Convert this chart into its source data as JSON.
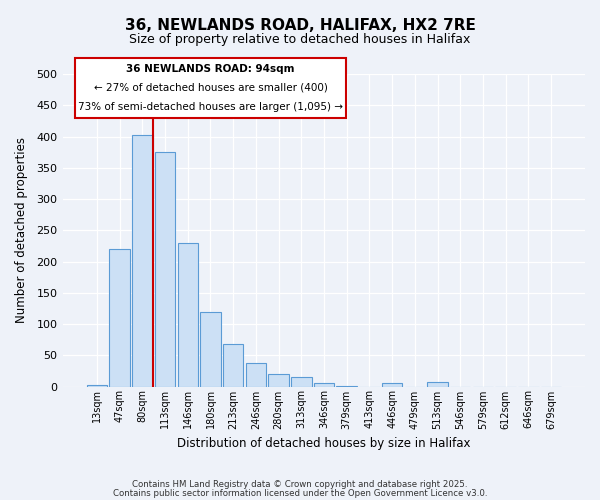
{
  "title": "36, NEWLANDS ROAD, HALIFAX, HX2 7RE",
  "subtitle": "Size of property relative to detached houses in Halifax",
  "xlabel": "Distribution of detached houses by size in Halifax",
  "ylabel": "Number of detached properties",
  "bar_labels": [
    "13sqm",
    "47sqm",
    "80sqm",
    "113sqm",
    "146sqm",
    "180sqm",
    "213sqm",
    "246sqm",
    "280sqm",
    "313sqm",
    "346sqm",
    "379sqm",
    "413sqm",
    "446sqm",
    "479sqm",
    "513sqm",
    "546sqm",
    "579sqm",
    "612sqm",
    "646sqm",
    "679sqm"
  ],
  "bar_values": [
    3,
    220,
    403,
    375,
    230,
    120,
    68,
    38,
    20,
    15,
    5,
    1,
    0,
    5,
    0,
    7,
    0,
    0,
    0,
    0,
    0
  ],
  "bar_color": "#cce0f5",
  "bar_edge_color": "#5b9bd5",
  "vline_x_index": 2,
  "vline_color": "#cc0000",
  "ylim": [
    0,
    500
  ],
  "yticks": [
    0,
    50,
    100,
    150,
    200,
    250,
    300,
    350,
    400,
    450,
    500
  ],
  "annotation_title": "36 NEWLANDS ROAD: 94sqm",
  "annotation_line1": "← 27% of detached houses are smaller (400)",
  "annotation_line2": "73% of semi-detached houses are larger (1,095) →",
  "annotation_box_color": "#cc0000",
  "footer_line1": "Contains HM Land Registry data © Crown copyright and database right 2025.",
  "footer_line2": "Contains public sector information licensed under the Open Government Licence v3.0.",
  "background_color": "#eef2f9",
  "grid_color": "#ffffff"
}
